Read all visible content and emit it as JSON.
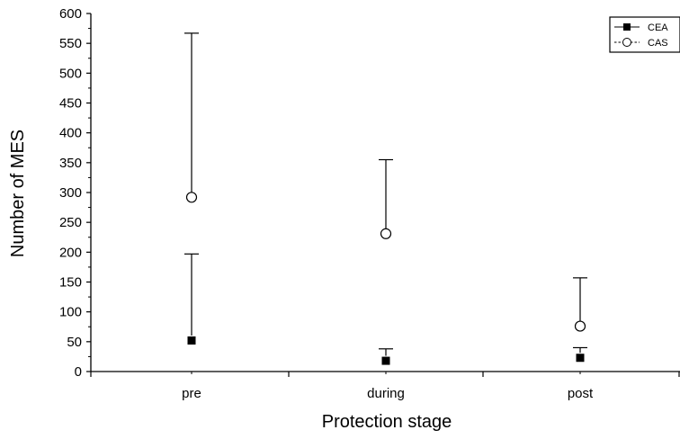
{
  "chart_data": {
    "type": "scatter",
    "title": "",
    "xlabel": "Protection stage",
    "ylabel": "Number of MES",
    "categories": [
      "pre",
      "during",
      "post"
    ],
    "ylim": [
      0,
      600
    ],
    "yticks": [
      0,
      50,
      100,
      150,
      200,
      250,
      300,
      350,
      400,
      450,
      500,
      550,
      600
    ],
    "legend": {
      "position": "top-right"
    },
    "series": [
      {
        "name": "CEA",
        "marker": "filled-square",
        "line_style": "solid",
        "values": [
          52,
          18,
          23
        ],
        "error_upper": [
          197,
          38,
          40
        ]
      },
      {
        "name": "CAS",
        "marker": "open-circle",
        "line_style": "dashed",
        "values": [
          292,
          231,
          76
        ],
        "error_upper": [
          567,
          355,
          157
        ]
      }
    ]
  }
}
